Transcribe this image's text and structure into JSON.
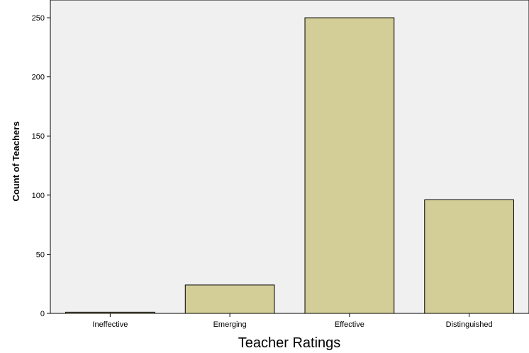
{
  "chart_data": {
    "type": "bar",
    "title": "",
    "xlabel": "Teacher Ratings",
    "ylabel": "Count of Teachers",
    "categories": [
      "Ineffective",
      "Emerging",
      "Effective",
      "Distinguished"
    ],
    "values": [
      1,
      24,
      250,
      96
    ],
    "ylim": [
      0,
      265
    ],
    "yticks": [
      0,
      50,
      100,
      150,
      200,
      250
    ],
    "grid": false,
    "legend": "none",
    "colors": {
      "plot_background": "#f0f0f0",
      "bar_fill": "#d3ce98",
      "bar_stroke": "#000000"
    }
  }
}
